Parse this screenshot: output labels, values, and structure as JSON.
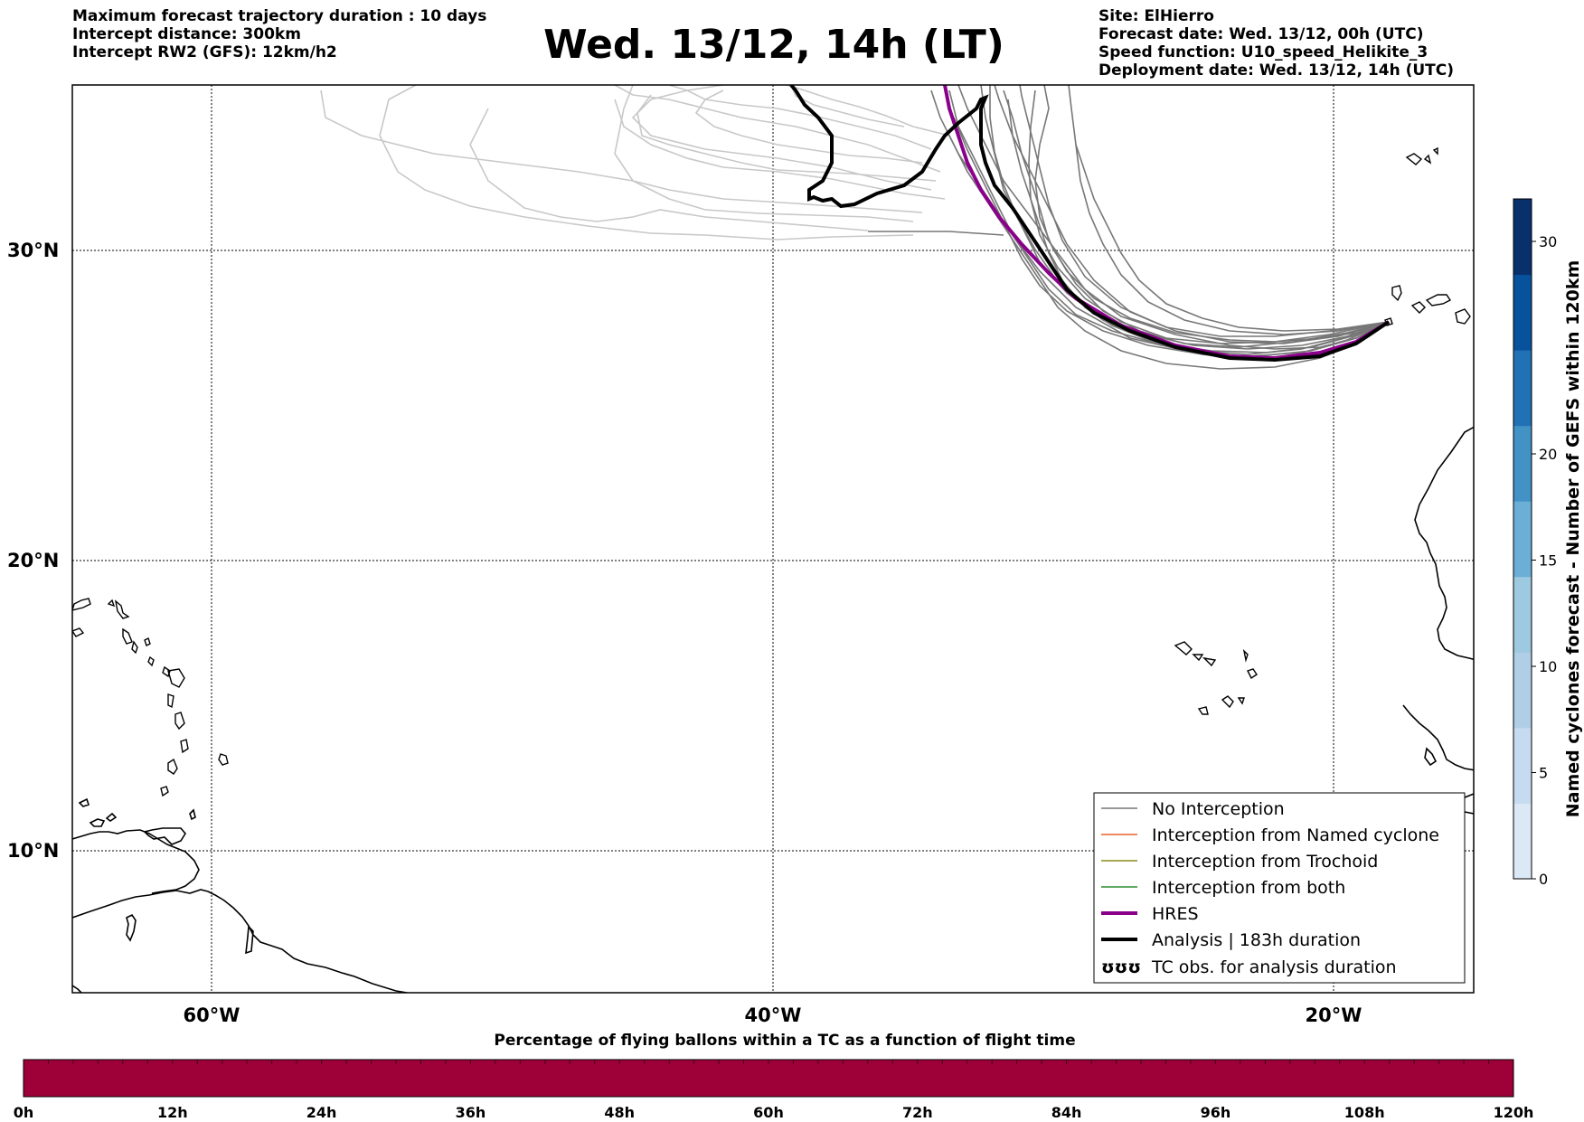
{
  "header": {
    "left_lines": [
      "Maximum forecast trajectory duration : 10 days",
      "Intercept distance: 300km",
      "Intercept RW2 (GFS):  12km/h2"
    ],
    "title": "Wed. 13/12, 14h (LT)",
    "right_lines": [
      "Site: ElHierro",
      "Forecast date: Wed. 13/12, 00h (UTC)",
      "Speed function: U10_speed_Helikite_3",
      "Deployment date: Wed. 13/12, 14h (UTC)"
    ]
  },
  "map": {
    "lon_range": [
      -65,
      -15
    ],
    "lat_range": [
      5,
      35
    ],
    "lat_ticks": [
      {
        "value": 30,
        "label": "30°N"
      },
      {
        "value": 20,
        "label": "20°N"
      },
      {
        "value": 10,
        "label": "10°N"
      }
    ],
    "lon_ticks": [
      {
        "value": -60,
        "label": "60°W"
      },
      {
        "value": -40,
        "label": "40°W"
      },
      {
        "value": -20,
        "label": "20°W"
      }
    ],
    "grid": true,
    "colors": {
      "no_interception": "#777777",
      "faded_trajectories": "#c8c8c8",
      "named_cyclone": "#e8622a",
      "trochoid": "#8b8b1e",
      "both": "#2e8b2e",
      "hres": "#8b008b",
      "analysis": "#000000"
    }
  },
  "legend": {
    "placement": "lower-right",
    "items": [
      {
        "label": "No Interception",
        "style": "thin",
        "color": "#777777"
      },
      {
        "label": "Interception from Named cyclone",
        "style": "thin",
        "color": "#e8622a"
      },
      {
        "label": "Interception from Trochoid",
        "style": "thin",
        "color": "#8b8b1e"
      },
      {
        "label": "Interception from both",
        "style": "thin",
        "color": "#2e8b2e"
      },
      {
        "label": "HRES",
        "style": "thick",
        "color": "#8b008b"
      },
      {
        "label": "Analysis | 183h duration",
        "style": "thick",
        "color": "#000000"
      },
      {
        "label": "TC obs. for analysis duration",
        "style": "marker",
        "color": "#000000",
        "marker": "ʊʊʊ"
      }
    ]
  },
  "colorbar_right": {
    "title": "Named cyclones forecast - Number of GEFS within 120km",
    "range": [
      0,
      32
    ],
    "ticks": [
      0,
      5,
      10,
      15,
      20,
      30
    ],
    "tick_labels": [
      "0",
      "5",
      "10",
      "15",
      "20",
      "30"
    ],
    "colors": [
      "#dbe8f5",
      "#c6dbef",
      "#b0cfe7",
      "#9ecae1",
      "#6baed6",
      "#4292c6",
      "#2171b5",
      "#08519c",
      "#08306b"
    ]
  },
  "colorbar_bottom": {
    "title": "Percentage of flying ballons within a TC as a function of flight time",
    "fill_color": "#9e0038",
    "tick_labels": [
      "0h",
      "12h",
      "24h",
      "36h",
      "48h",
      "60h",
      "72h",
      "84h",
      "96h",
      "108h",
      "120h"
    ]
  }
}
